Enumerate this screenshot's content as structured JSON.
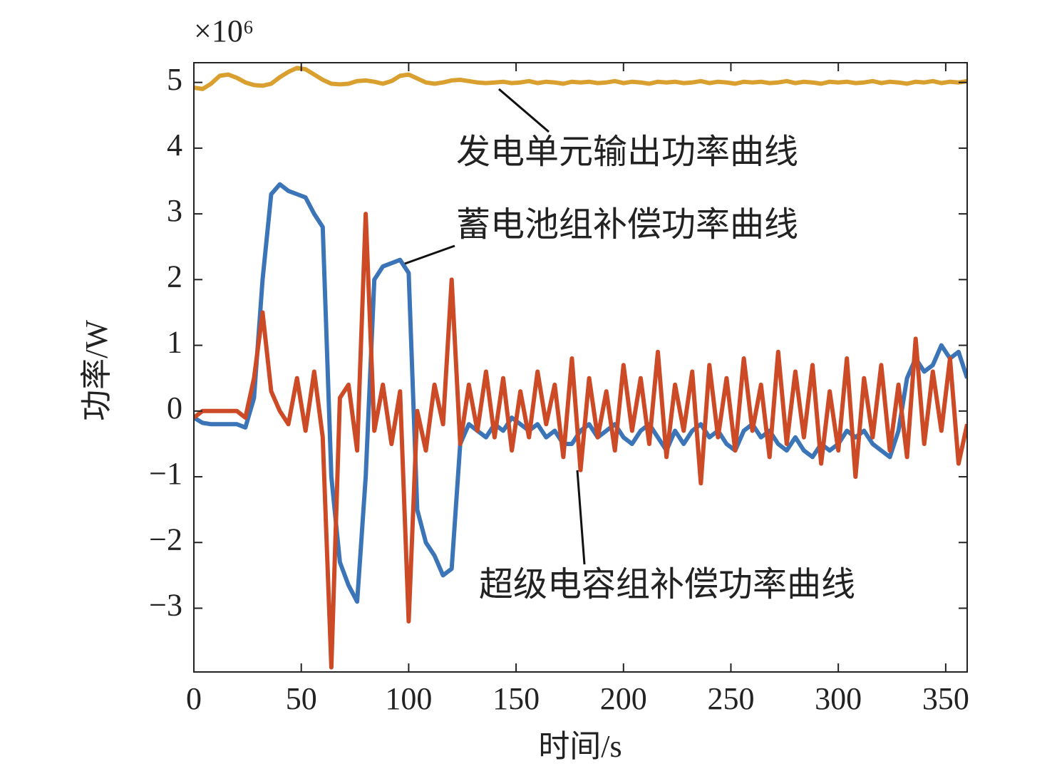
{
  "chart_data": {
    "type": "line",
    "x_label": "时间/s",
    "y_label": "功率/W",
    "y_multiplier": "×10⁶",
    "annotations": [
      "发电单元输出功率曲线",
      "蓄电池组补偿功率曲线",
      "超级电容组补偿功率曲线"
    ],
    "xlim": [
      0,
      360
    ],
    "xticks": [
      0,
      50,
      100,
      150,
      200,
      250,
      300,
      350
    ],
    "ylim": [
      -3.97,
      5.3
    ],
    "yticks": [
      {
        "value": -3,
        "label": "−3"
      },
      {
        "value": -2,
        "label": "−2"
      },
      {
        "value": -1,
        "label": "−1"
      },
      0,
      1,
      2,
      3,
      4,
      5
    ],
    "x": [
      0,
      4,
      8,
      12,
      16,
      20,
      24,
      28,
      32,
      36,
      40,
      44,
      48,
      52,
      56,
      60,
      64,
      68,
      72,
      76,
      80,
      84,
      88,
      92,
      96,
      100,
      104,
      108,
      112,
      116,
      120,
      124,
      128,
      132,
      136,
      140,
      144,
      148,
      152,
      156,
      160,
      164,
      168,
      172,
      176,
      180,
      184,
      188,
      192,
      196,
      200,
      204,
      208,
      212,
      216,
      220,
      224,
      228,
      232,
      236,
      240,
      244,
      248,
      252,
      256,
      260,
      264,
      268,
      272,
      276,
      280,
      284,
      288,
      292,
      296,
      300,
      304,
      308,
      312,
      316,
      320,
      324,
      328,
      332,
      336,
      340,
      344,
      348,
      352,
      356,
      360
    ],
    "series": [
      {
        "name": "发电单元输出功率曲线",
        "color": "#d9a030",
        "values": [
          4.92,
          4.9,
          4.98,
          5.1,
          5.12,
          5.07,
          5.0,
          4.96,
          4.95,
          4.98,
          5.08,
          5.16,
          5.22,
          5.2,
          5.12,
          5.04,
          4.98,
          4.97,
          4.98,
          5.02,
          5.03,
          5.01,
          4.98,
          5.02,
          5.1,
          5.12,
          5.06,
          5.0,
          4.98,
          5.0,
          5.03,
          5.04,
          5.02,
          5.0,
          4.99,
          5.0,
          5.01,
          4.99,
          5.0,
          5.02,
          4.99,
          5.01,
          5.0,
          4.98,
          5.01,
          5.0,
          5.01,
          4.99,
          5.0,
          5.02,
          4.99,
          5.01,
          5.0,
          4.98,
          5.01,
          5.0,
          5.01,
          4.99,
          5.0,
          5.02,
          4.99,
          5.01,
          5.0,
          4.98,
          5.01,
          5.0,
          5.01,
          4.99,
          5.0,
          5.02,
          4.99,
          5.01,
          5.0,
          4.98,
          5.01,
          5.0,
          5.01,
          4.99,
          5.0,
          5.02,
          4.99,
          5.01,
          5.0,
          4.98,
          5.01,
          5.0,
          5.02,
          4.99,
          5.01,
          5.0,
          5.02
        ]
      },
      {
        "name": "蓄电池组补偿功率曲线",
        "color": "#3b75b8",
        "values": [
          -0.1,
          -0.18,
          -0.2,
          -0.2,
          -0.2,
          -0.2,
          -0.25,
          0.2,
          2.0,
          3.3,
          3.45,
          3.35,
          3.3,
          3.25,
          3.0,
          2.8,
          -1.0,
          -2.3,
          -2.65,
          -2.9,
          -1.0,
          2.0,
          2.2,
          2.25,
          2.3,
          2.1,
          -1.5,
          -2.0,
          -2.2,
          -2.5,
          -2.4,
          -0.5,
          -0.2,
          -0.3,
          -0.4,
          -0.2,
          -0.3,
          -0.1,
          -0.2,
          -0.3,
          -0.2,
          -0.4,
          -0.3,
          -0.5,
          -0.5,
          -0.3,
          -0.2,
          -0.4,
          -0.3,
          -0.2,
          -0.4,
          -0.5,
          -0.3,
          -0.2,
          -0.4,
          -0.6,
          -0.3,
          -0.5,
          -0.3,
          -0.2,
          -0.4,
          -0.3,
          -0.5,
          -0.6,
          -0.3,
          -0.2,
          -0.4,
          -0.3,
          -0.5,
          -0.6,
          -0.4,
          -0.6,
          -0.7,
          -0.5,
          -0.6,
          -0.5,
          -0.3,
          -0.4,
          -0.3,
          -0.5,
          -0.6,
          -0.7,
          -0.3,
          0.5,
          0.8,
          0.6,
          0.7,
          1.0,
          0.8,
          0.9,
          0.5
        ]
      },
      {
        "name": "超级电容组补偿功率曲线",
        "color": "#cc4a25",
        "values": [
          -0.1,
          0,
          0,
          0,
          0,
          0,
          -0.1,
          0.5,
          1.5,
          0.3,
          0.0,
          -0.2,
          0.5,
          -0.3,
          0.6,
          -0.4,
          -3.9,
          0.2,
          0.4,
          -0.6,
          3.0,
          -0.3,
          0.4,
          -0.5,
          0.3,
          -3.2,
          0.0,
          -0.6,
          0.4,
          -0.2,
          2.0,
          -0.5,
          0.4,
          -0.3,
          0.6,
          -0.4,
          0.5,
          -0.6,
          0.3,
          -0.4,
          0.6,
          -0.2,
          0.4,
          -0.7,
          0.8,
          -0.9,
          0.5,
          -0.4,
          0.3,
          -0.6,
          0.7,
          -0.3,
          0.5,
          -0.5,
          0.9,
          -0.7,
          0.4,
          -0.3,
          0.6,
          -1.1,
          0.7,
          -0.4,
          0.5,
          -0.6,
          0.8,
          -0.3,
          0.4,
          -0.7,
          0.9,
          -0.5,
          0.6,
          -0.4,
          0.7,
          -0.8,
          0.3,
          -0.6,
          0.8,
          -1.0,
          0.5,
          -0.4,
          0.7,
          -0.6,
          0.4,
          -0.7,
          1.1,
          -0.5,
          0.6,
          -0.3,
          0.8,
          -0.8,
          -0.2
        ]
      }
    ]
  }
}
